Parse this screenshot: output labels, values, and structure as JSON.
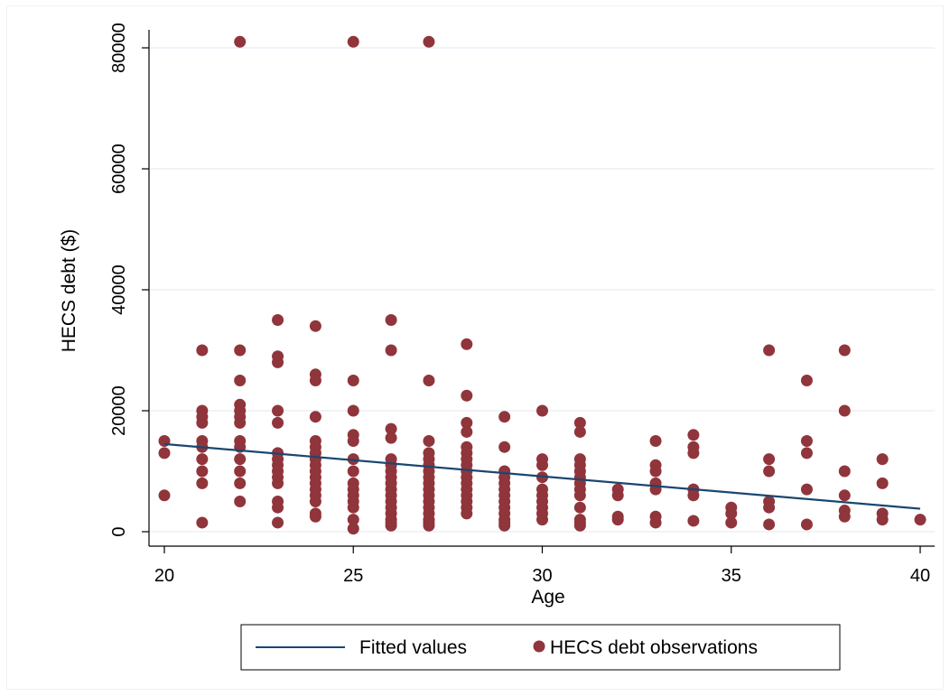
{
  "chart_data": {
    "type": "scatter",
    "title": "",
    "xlabel": "Age",
    "ylabel": "HECS debt ($)",
    "xlim": [
      20,
      40
    ],
    "ylim": [
      0,
      80000
    ],
    "x_ticks": [
      "20",
      "25",
      "30",
      "35",
      "40"
    ],
    "y_ticks": [
      "0",
      "20000",
      "40000",
      "60000",
      "80000"
    ],
    "grid": "horizontal",
    "legend_position": "bottom",
    "series": [
      {
        "name": "Fitted values",
        "kind": "line",
        "color": "#1a476f",
        "points": [
          [
            20,
            14500
          ],
          [
            40,
            3800
          ]
        ]
      },
      {
        "name": "HECS debt observations",
        "kind": "scatter",
        "color": "#90353b",
        "points": [
          [
            20,
            15000
          ],
          [
            20,
            13000
          ],
          [
            20,
            6000
          ],
          [
            21,
            30000
          ],
          [
            21,
            20000
          ],
          [
            21,
            19000
          ],
          [
            21,
            18000
          ],
          [
            21,
            15000
          ],
          [
            21,
            14000
          ],
          [
            21,
            12000
          ],
          [
            21,
            10000
          ],
          [
            21,
            8000
          ],
          [
            21,
            1500
          ],
          [
            22,
            81000
          ],
          [
            22,
            30000
          ],
          [
            22,
            25000
          ],
          [
            22,
            21000
          ],
          [
            22,
            20000
          ],
          [
            22,
            19000
          ],
          [
            22,
            18000
          ],
          [
            22,
            15000
          ],
          [
            22,
            14000
          ],
          [
            22,
            12000
          ],
          [
            22,
            10000
          ],
          [
            22,
            8000
          ],
          [
            22,
            5000
          ],
          [
            23,
            35000
          ],
          [
            23,
            29000
          ],
          [
            23,
            28000
          ],
          [
            23,
            20000
          ],
          [
            23,
            18000
          ],
          [
            23,
            13000
          ],
          [
            23,
            12000
          ],
          [
            23,
            11000
          ],
          [
            23,
            10000
          ],
          [
            23,
            9000
          ],
          [
            23,
            8000
          ],
          [
            23,
            5000
          ],
          [
            23,
            4000
          ],
          [
            23,
            1500
          ],
          [
            24,
            34000
          ],
          [
            24,
            26000
          ],
          [
            24,
            25000
          ],
          [
            24,
            19000
          ],
          [
            24,
            15000
          ],
          [
            24,
            14000
          ],
          [
            24,
            13000
          ],
          [
            24,
            12000
          ],
          [
            24,
            11000
          ],
          [
            24,
            10000
          ],
          [
            24,
            9000
          ],
          [
            24,
            8000
          ],
          [
            24,
            7000
          ],
          [
            24,
            6000
          ],
          [
            24,
            5000
          ],
          [
            24,
            3000
          ],
          [
            24,
            2500
          ],
          [
            25,
            81000
          ],
          [
            25,
            25000
          ],
          [
            25,
            20000
          ],
          [
            25,
            16000
          ],
          [
            25,
            15000
          ],
          [
            25,
            12000
          ],
          [
            25,
            10000
          ],
          [
            25,
            8000
          ],
          [
            25,
            7000
          ],
          [
            25,
            6000
          ],
          [
            25,
            5000
          ],
          [
            25,
            4000
          ],
          [
            25,
            2000
          ],
          [
            25,
            500
          ],
          [
            26,
            35000
          ],
          [
            26,
            30000
          ],
          [
            26,
            17000
          ],
          [
            26,
            15500
          ],
          [
            26,
            12000
          ],
          [
            26,
            11000
          ],
          [
            26,
            10000
          ],
          [
            26,
            9000
          ],
          [
            26,
            8000
          ],
          [
            26,
            7000
          ],
          [
            26,
            6000
          ],
          [
            26,
            5000
          ],
          [
            26,
            4000
          ],
          [
            26,
            3000
          ],
          [
            26,
            2000
          ],
          [
            26,
            1500
          ],
          [
            26,
            1000
          ],
          [
            27,
            81000
          ],
          [
            27,
            25000
          ],
          [
            27,
            15000
          ],
          [
            27,
            13000
          ],
          [
            27,
            12000
          ],
          [
            27,
            11000
          ],
          [
            27,
            10000
          ],
          [
            27,
            9000
          ],
          [
            27,
            8000
          ],
          [
            27,
            7000
          ],
          [
            27,
            6000
          ],
          [
            27,
            5000
          ],
          [
            27,
            4000
          ],
          [
            27,
            3000
          ],
          [
            27,
            2000
          ],
          [
            27,
            1500
          ],
          [
            27,
            1000
          ],
          [
            28,
            31000
          ],
          [
            28,
            22500
          ],
          [
            28,
            18000
          ],
          [
            28,
            16500
          ],
          [
            28,
            14000
          ],
          [
            28,
            13000
          ],
          [
            28,
            12000
          ],
          [
            28,
            11000
          ],
          [
            28,
            10000
          ],
          [
            28,
            9000
          ],
          [
            28,
            8000
          ],
          [
            28,
            7000
          ],
          [
            28,
            6000
          ],
          [
            28,
            5000
          ],
          [
            28,
            4000
          ],
          [
            28,
            3000
          ],
          [
            29,
            19000
          ],
          [
            29,
            14000
          ],
          [
            29,
            10000
          ],
          [
            29,
            9000
          ],
          [
            29,
            8000
          ],
          [
            29,
            7000
          ],
          [
            29,
            6000
          ],
          [
            29,
            5000
          ],
          [
            29,
            4000
          ],
          [
            29,
            3000
          ],
          [
            29,
            2000
          ],
          [
            29,
            1500
          ],
          [
            29,
            1000
          ],
          [
            30,
            20000
          ],
          [
            30,
            12000
          ],
          [
            30,
            11000
          ],
          [
            30,
            9000
          ],
          [
            30,
            7000
          ],
          [
            30,
            6000
          ],
          [
            30,
            5000
          ],
          [
            30,
            4000
          ],
          [
            30,
            3000
          ],
          [
            30,
            2000
          ],
          [
            31,
            18000
          ],
          [
            31,
            16500
          ],
          [
            31,
            12000
          ],
          [
            31,
            11000
          ],
          [
            31,
            10000
          ],
          [
            31,
            9000
          ],
          [
            31,
            8000
          ],
          [
            31,
            7000
          ],
          [
            31,
            6000
          ],
          [
            31,
            4000
          ],
          [
            31,
            2000
          ],
          [
            31,
            1500
          ],
          [
            31,
            1000
          ],
          [
            32,
            7000
          ],
          [
            32,
            6000
          ],
          [
            32,
            2500
          ],
          [
            32,
            2000
          ],
          [
            33,
            15000
          ],
          [
            33,
            11000
          ],
          [
            33,
            10000
          ],
          [
            33,
            8000
          ],
          [
            33,
            7000
          ],
          [
            33,
            2500
          ],
          [
            33,
            1500
          ],
          [
            34,
            16000
          ],
          [
            34,
            14000
          ],
          [
            34,
            13000
          ],
          [
            34,
            7000
          ],
          [
            34,
            6000
          ],
          [
            34,
            1800
          ],
          [
            35,
            4000
          ],
          [
            35,
            3000
          ],
          [
            35,
            1500
          ],
          [
            36,
            30000
          ],
          [
            36,
            12000
          ],
          [
            36,
            10000
          ],
          [
            36,
            5000
          ],
          [
            36,
            4000
          ],
          [
            36,
            1200
          ],
          [
            37,
            25000
          ],
          [
            37,
            15000
          ],
          [
            37,
            13000
          ],
          [
            37,
            7000
          ],
          [
            37,
            1200
          ],
          [
            38,
            30000
          ],
          [
            38,
            20000
          ],
          [
            38,
            10000
          ],
          [
            38,
            6000
          ],
          [
            38,
            3500
          ],
          [
            38,
            2500
          ],
          [
            39,
            12000
          ],
          [
            39,
            8000
          ],
          [
            39,
            3000
          ],
          [
            39,
            2000
          ],
          [
            40,
            2000
          ]
        ]
      }
    ]
  }
}
